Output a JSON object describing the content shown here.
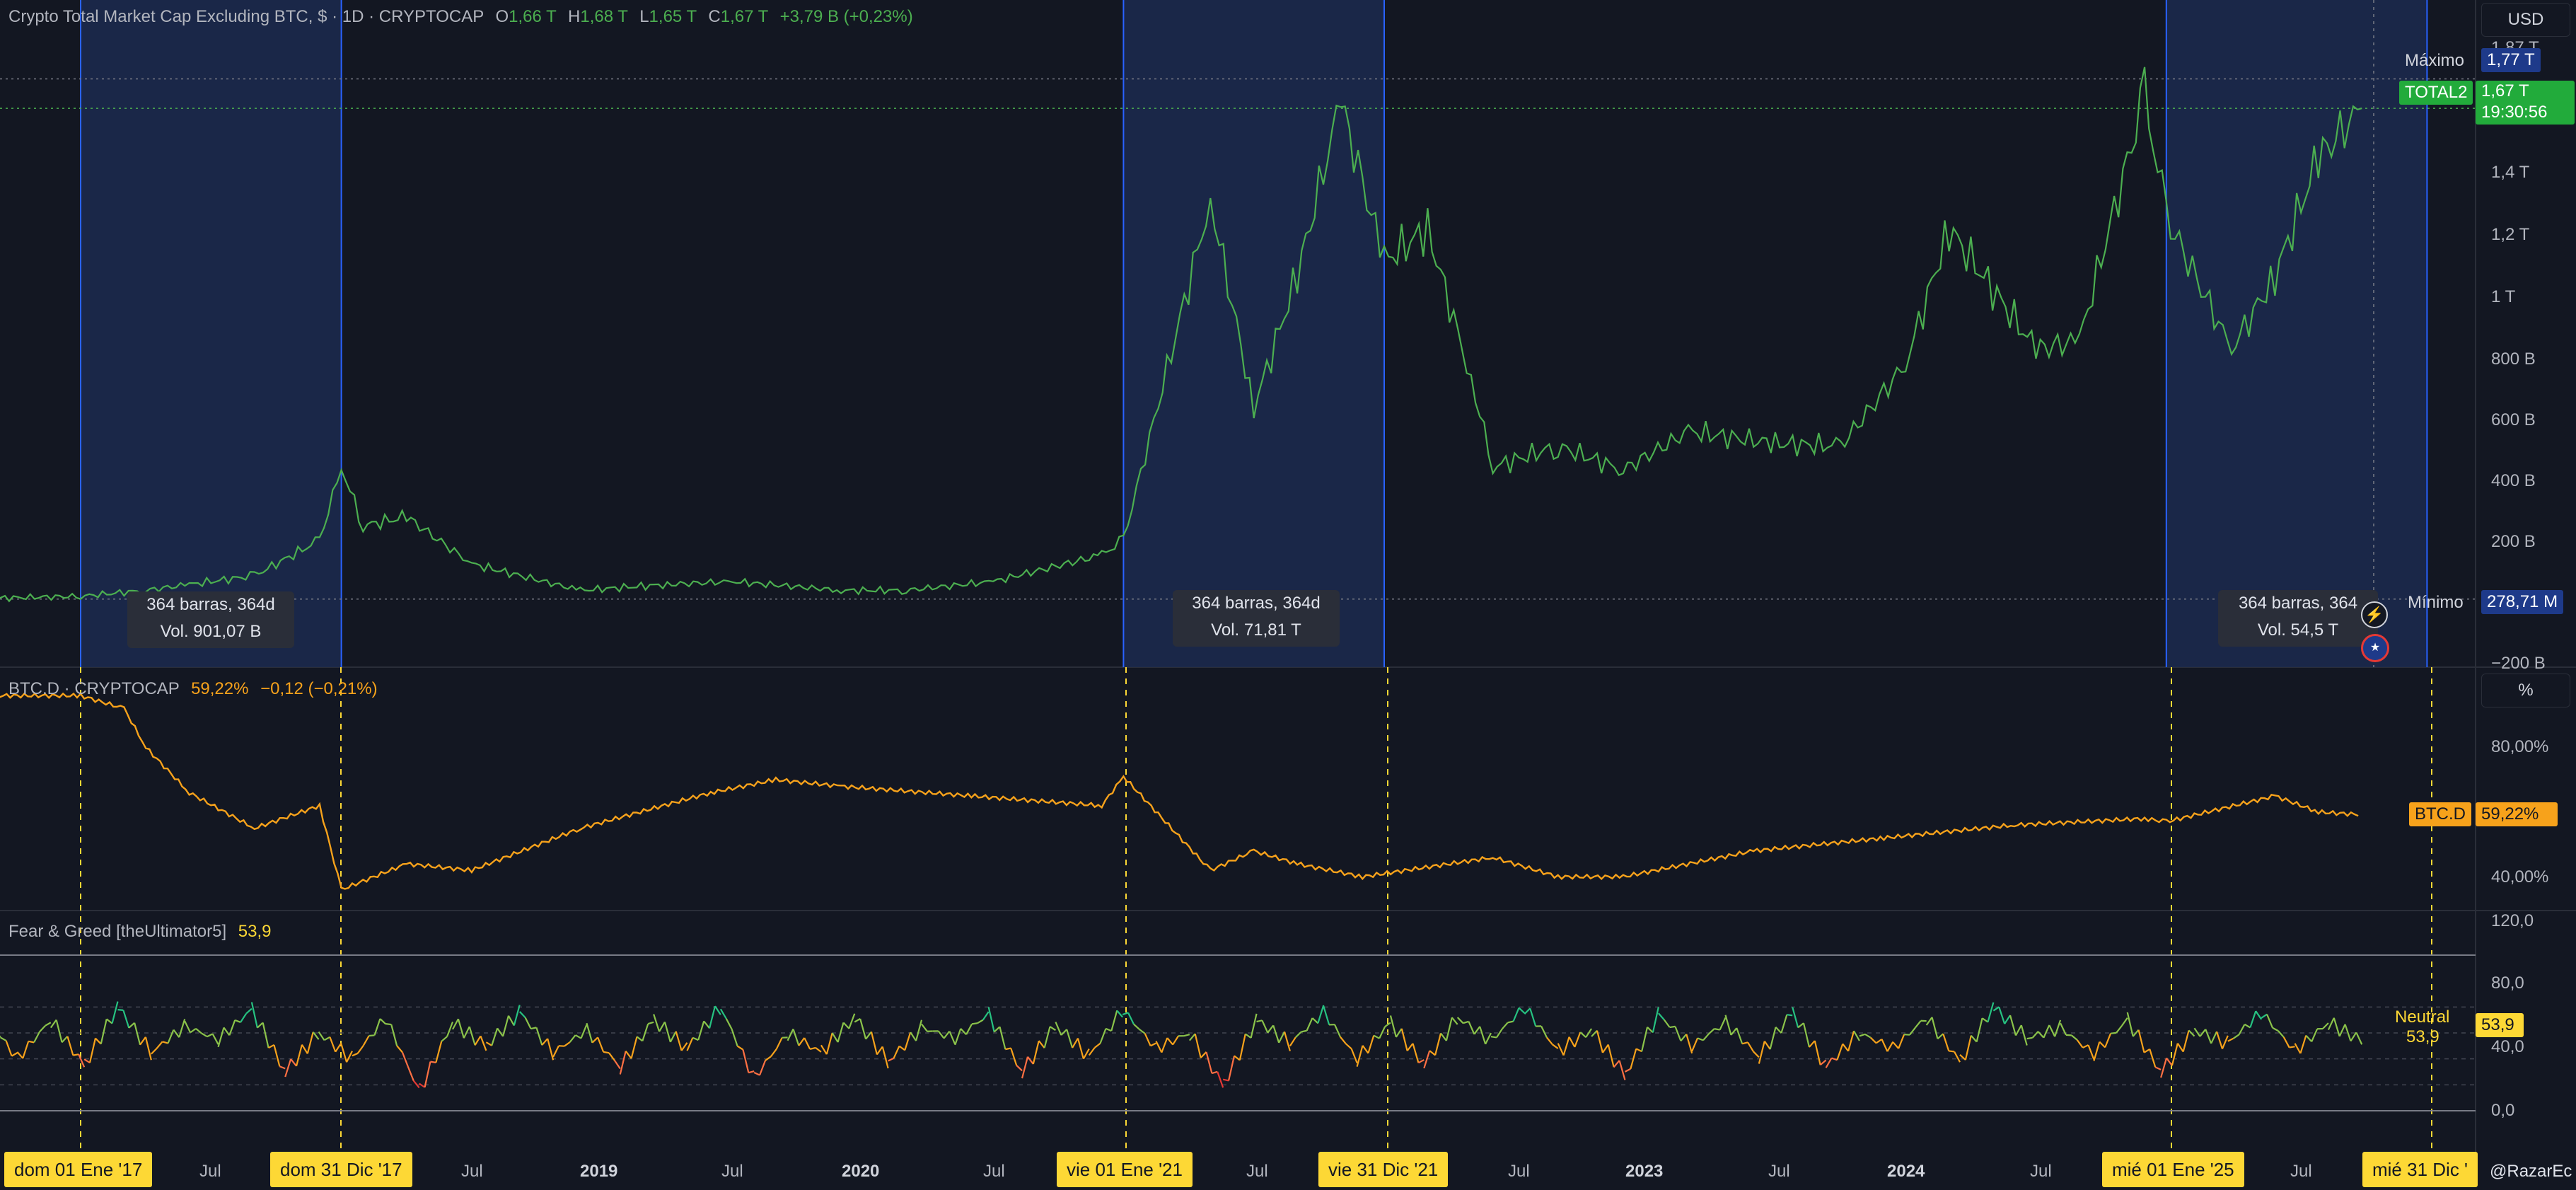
{
  "main_legend": {
    "title": "Crypto Total Market Cap Excluding BTC, $ · 1D · CRYPTOCAP",
    "o_label": "O",
    "o": "1,66 T",
    "h_label": "H",
    "h": "1,68 T",
    "l_label": "L",
    "l": "1,65 T",
    "c_label": "C",
    "c": "1,67 T",
    "change": "+3,79 B (+0,23%)"
  },
  "btcd_legend": {
    "title": "BTC.D · CRYPTOCAP",
    "value": "59,22%",
    "change": "−0,12 (−0,21%)"
  },
  "fg_legend": {
    "title": "Fear & Greed [theUltimator5]",
    "value": "53,9"
  },
  "currency_button": "USD",
  "percent_button": "%",
  "main_price_axis": [
    "1,4 T",
    "1,2 T",
    "1 T",
    "800 B",
    "600 B",
    "400 B",
    "200 B",
    "−200 B"
  ],
  "main_axis_top": "1,87 T",
  "max_label": {
    "text": "Máximo",
    "value": "1,77 T"
  },
  "min_label": {
    "text": "Mínimo",
    "value": "278,71 M"
  },
  "symbol_tag": {
    "name": "TOTAL2",
    "value": "1,67 T",
    "countdown": "19:30:56"
  },
  "btcd_axis": [
    "80,00%",
    "40,00%"
  ],
  "btcd_tag": {
    "name": "BTC.D",
    "value": "59,22%"
  },
  "fg_axis": [
    "120,0",
    "80,0",
    "40,0",
    "0,0"
  ],
  "fg_tag": {
    "value": "53,9",
    "label": "Neutral",
    "sub": "53,9"
  },
  "range_boxes": [
    {
      "bars": "364 barras, 364d",
      "vol": "Vol. 901,07 B"
    },
    {
      "bars": "364 barras, 364d",
      "vol": "Vol. 71,81 T"
    },
    {
      "bars": "364 barras, 364",
      "vol": "Vol. 54,5 T"
    }
  ],
  "date_highlights": [
    "dom 01 Ene '17",
    "dom 31 Dic '17",
    "vie 01 Ene '21",
    "vie 31 Dic '21",
    "mié 01 Ene '25",
    "mié 31 Dic '"
  ],
  "time_axis": [
    "Jul",
    "Jul",
    "2019",
    "Jul",
    "2020",
    "Jul",
    "Jul",
    "Jul",
    "2023",
    "Jul",
    "2024",
    "Jul",
    "Jul"
  ],
  "watermark": "@RazarEc",
  "colors": {
    "up": "#4caf50",
    "btcd": "#f7a21b",
    "highlight": "#fdd835",
    "range_fill": "#1c2a4f",
    "range_line": "#2962ff",
    "bg": "#131722"
  },
  "chart_data": [
    {
      "type": "line",
      "title": "Crypto Total Market Cap Excluding BTC",
      "unit": "USD",
      "x": [
        "2016-07",
        "2017-01",
        "2017-04",
        "2017-06",
        "2017-09",
        "2017-12",
        "2018-01",
        "2018-02",
        "2018-04",
        "2018-07",
        "2018-12",
        "2019-04",
        "2019-07",
        "2019-12",
        "2020-03",
        "2020-07",
        "2020-12",
        "2021-01",
        "2021-05",
        "2021-07",
        "2021-09",
        "2021-11",
        "2022-01",
        "2022-03",
        "2022-05",
        "2022-06",
        "2022-09",
        "2022-12",
        "2023-03",
        "2023-07",
        "2023-10",
        "2024-01",
        "2024-03",
        "2024-07",
        "2024-09",
        "2024-12",
        "2025-01",
        "2025-04",
        "2025-06",
        "2025-08",
        "2025-10"
      ],
      "y": [
        0.0003,
        0.01,
        0.03,
        0.05,
        0.08,
        0.2,
        0.45,
        0.25,
        0.28,
        0.12,
        0.03,
        0.05,
        0.06,
        0.03,
        0.03,
        0.06,
        0.15,
        0.2,
        1.36,
        0.65,
        1.1,
        1.69,
        1.15,
        1.26,
        0.75,
        0.45,
        0.52,
        0.44,
        0.57,
        0.53,
        0.52,
        0.8,
        1.26,
        0.85,
        0.88,
        1.71,
        1.3,
        0.85,
        1.1,
        1.5,
        1.67
      ],
      "ylim": [
        -0.2,
        1.87
      ],
      "max": 1.77,
      "min": 0.00027871,
      "last": 1.67
    },
    {
      "type": "line",
      "title": "BTC.D",
      "unit": "%",
      "x": [
        "2016-07",
        "2017-01",
        "2017-03",
        "2017-04",
        "2017-06",
        "2017-09",
        "2017-12",
        "2018-01",
        "2018-04",
        "2018-07",
        "2018-12",
        "2019-06",
        "2019-09",
        "2019-12",
        "2020-06",
        "2020-12",
        "2021-01",
        "2021-05",
        "2021-07",
        "2021-09",
        "2021-12",
        "2022-06",
        "2022-09",
        "2022-12",
        "2023-06",
        "2023-12",
        "2024-06",
        "2024-12",
        "2025-01",
        "2025-06",
        "2025-08",
        "2025-10"
      ],
      "y": [
        96,
        96,
        92,
        80,
        66,
        55,
        62,
        36,
        44,
        42,
        55,
        66,
        70,
        68,
        65,
        62,
        71,
        42,
        48,
        44,
        40,
        46,
        40,
        40,
        48,
        52,
        56,
        58,
        57,
        65,
        60,
        59.22
      ],
      "ylim": [
        30,
        100
      ]
    },
    {
      "type": "line",
      "title": "Fear & Greed",
      "x_start": "2016-07",
      "x_end": "2025-10",
      "y": [
        52,
        75,
        40,
        70,
        35,
        80,
        45,
        65,
        55,
        78,
        30,
        60,
        40,
        72,
        15,
        68,
        50,
        76,
        45,
        62,
        34,
        70,
        48,
        80,
        25,
        60,
        45,
        72,
        38,
        64,
        56,
        74,
        30,
        66,
        42,
        78,
        48,
        60,
        20,
        70,
        52,
        76,
        40,
        68,
        36,
        72,
        54,
        80,
        46,
        62,
        28,
        74,
        50,
        68,
        42,
        76,
        34,
        60,
        48,
        72,
        38,
        80,
        56,
        64,
        44,
        70,
        30,
        62,
        52,
        76,
        46,
        68,
        54
      ],
      "ylim": [
        0,
        120
      ],
      "last": 53.9
    }
  ]
}
